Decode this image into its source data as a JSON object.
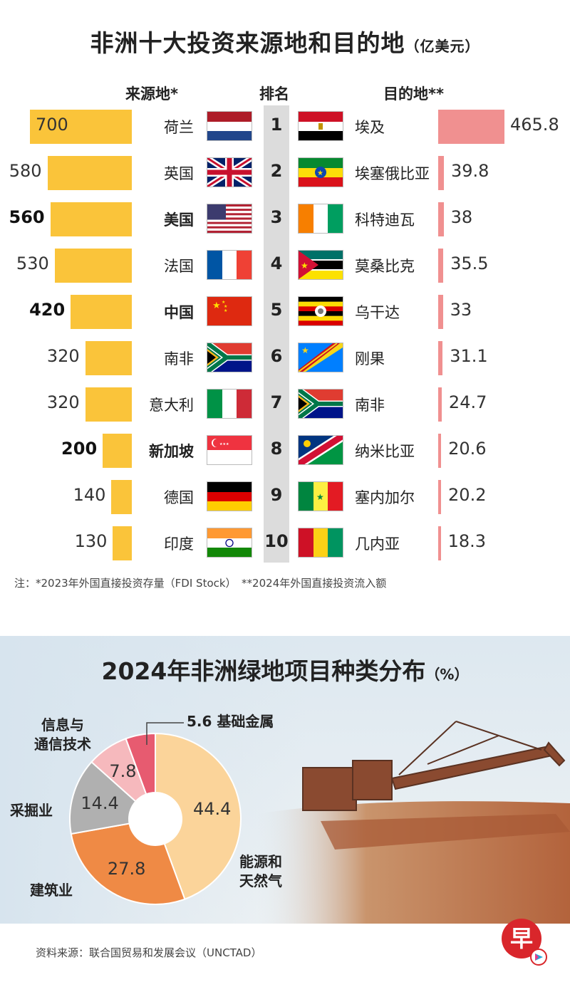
{
  "top": {
    "title": "非洲十大投资来源地和目的地",
    "unit": "（亿美元）",
    "header_source": "来源地*",
    "header_rank": "排名",
    "header_dest": "目的地**",
    "note": "注：*2023年外国直接投资存量（FDI Stock）　**2024年外国直接投资流入额"
  },
  "chart_data": [
    {
      "type": "bar",
      "title": "非洲十大投资来源地和目的地",
      "unit": "（亿美元）",
      "categories": [
        "1",
        "2",
        "3",
        "4",
        "5",
        "6",
        "7",
        "8",
        "9",
        "10"
      ],
      "series": [
        {
          "name": "来源地*",
          "labels": [
            "荷兰",
            "英国",
            "美国",
            "法国",
            "中国",
            "南非",
            "意大利",
            "新加坡",
            "德国",
            "印度"
          ],
          "values": [
            700,
            580,
            560,
            530,
            420,
            320,
            320,
            200,
            140,
            130
          ],
          "value_labels": [
            "700",
            "580",
            "560",
            "530",
            "420",
            "320",
            "320",
            "200",
            "140",
            "130"
          ],
          "bold": [
            false,
            false,
            true,
            false,
            true,
            false,
            false,
            true,
            false,
            false
          ],
          "flags": [
            "flag-netherlands",
            "flag-uk",
            "flag-usa",
            "flag-france",
            "flag-china",
            "flag-south-africa",
            "flag-italy",
            "flag-singapore",
            "flag-germany",
            "flag-india"
          ],
          "color": "#fac43a"
        },
        {
          "name": "目的地**",
          "labels": [
            "埃及",
            "埃塞俄比亚",
            "科特迪瓦",
            "莫桑比克",
            "乌干达",
            "刚果",
            "南非",
            "纳米比亚",
            "塞内加尔",
            "几内亚"
          ],
          "values": [
            465.8,
            39.8,
            38,
            35.5,
            33,
            31.1,
            24.7,
            20.6,
            20.2,
            18.3
          ],
          "value_labels": [
            "465.8",
            "39.8",
            "38",
            "35.5",
            "33",
            "31.1",
            "24.7",
            "20.6",
            "20.2",
            "18.3"
          ],
          "flags": [
            "flag-egypt",
            "flag-ethiopia",
            "flag-ivory-coast",
            "flag-mozambique",
            "flag-uganda",
            "flag-congo",
            "flag-south-africa",
            "flag-namibia",
            "flag-senegal",
            "flag-guinea"
          ],
          "color": "#f09090"
        }
      ]
    },
    {
      "type": "pie",
      "title": "2024年非洲绿地项目种类分布",
      "unit": "（%）",
      "slices": [
        {
          "label": "能源和天然气",
          "value": 44.4,
          "value_label": "44.4",
          "color": "#fbd49a"
        },
        {
          "label": "建筑业",
          "value": 27.8,
          "value_label": "27.8",
          "color": "#ef8a45"
        },
        {
          "label": "采掘业",
          "value": 14.4,
          "value_label": "14.4",
          "color": "#b0b0b0"
        },
        {
          "label": "信息与通信技术",
          "value": 7.8,
          "value_label": "7.8",
          "color": "#f6b9bd"
        },
        {
          "label": "基础金属",
          "value": 5.6,
          "value_label": "5.6",
          "color": "#e75b70"
        }
      ]
    }
  ],
  "bottom": {
    "title": "2024年非洲绿地项目种类分布",
    "unit": "（%）",
    "label_ict_line1": "信息与",
    "label_ict_line2": "通信技术",
    "label_mining": "采掘业",
    "label_construction": "建筑业",
    "label_energy_line1": "能源和",
    "label_energy_line2": "天然气",
    "label_metal": "5.6 基础金属"
  },
  "source": "资料来源：联合国贸易和发展会议（UNCTAD）",
  "logo": {
    "name": "zaobao-logo",
    "glyph": "早",
    "color": "#d9262b"
  }
}
